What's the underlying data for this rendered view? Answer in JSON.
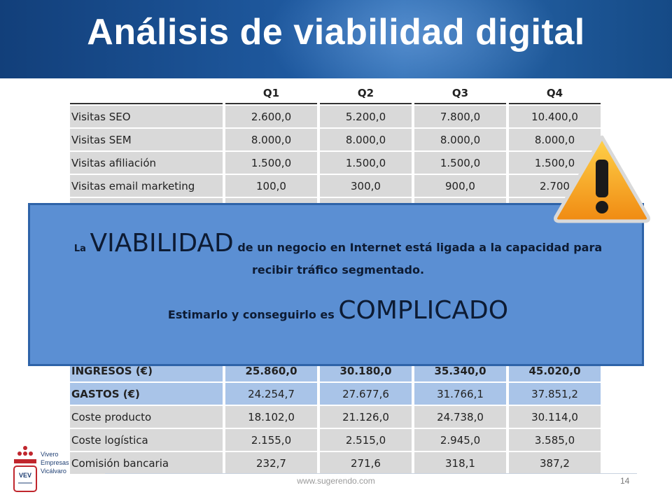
{
  "title": "Análisis de viabilidad digital",
  "table": {
    "headers": [
      "",
      "Q1",
      "Q2",
      "Q3",
      "Q4"
    ],
    "top_rows": [
      {
        "label": "Visitas SEO",
        "values": [
          "2.600,0",
          "5.200,0",
          "7.800,0",
          "10.400,0"
        ]
      },
      {
        "label": "Visitas SEM",
        "values": [
          "8.000,0",
          "8.000,0",
          "8.000,0",
          "8.000,0"
        ]
      },
      {
        "label": "Visitas afiliación",
        "values": [
          "1.500,0",
          "1.500,0",
          "1.500,0",
          "1.500,0"
        ]
      },
      {
        "label": "Visitas email marketing",
        "values": [
          "100,0",
          "300,0",
          "900,0",
          "2.700"
        ]
      }
    ],
    "bottom_rows": [
      {
        "label": "INGRESOS (€)",
        "values": [
          "25.860,0",
          "30.180,0",
          "35.340,0",
          "45.020,0"
        ]
      },
      {
        "label": "GASTOS (€)",
        "values": [
          "24.254,7",
          "27.677,6",
          "31.766,1",
          "37.851,2"
        ]
      },
      {
        "label": "Coste producto",
        "values": [
          "18.102,0",
          "21.126,0",
          "24.738,0",
          "30.114,0"
        ]
      },
      {
        "label": "Coste logística",
        "values": [
          "2.155,0",
          "2.515,0",
          "2.945,0",
          "3.585,0"
        ]
      },
      {
        "label": "Comisión bancaria",
        "values": [
          "232,7",
          "271,6",
          "318,1",
          "387,2"
        ]
      }
    ]
  },
  "callout": {
    "l1_prefix": "La",
    "l1_big": "VIABILIDAD",
    "l1_rest": "de un negocio en Internet está ligada a la capacidad para",
    "l1_cont": "recibir tráfico segmentado.",
    "l2_prefix": "Estimarlo y conseguirlo es",
    "l2_big": "COMPLICADO"
  },
  "logo": {
    "line1": "Vivero",
    "line2": "Empresas",
    "line3": "Vicálvaro",
    "badge": "VEV"
  },
  "footer": {
    "url": "www.sugerendo.com",
    "page": "14"
  },
  "colors": {
    "header": "#1f5aa0",
    "callout": "#5b8fd3",
    "warning": "#f5a623"
  }
}
